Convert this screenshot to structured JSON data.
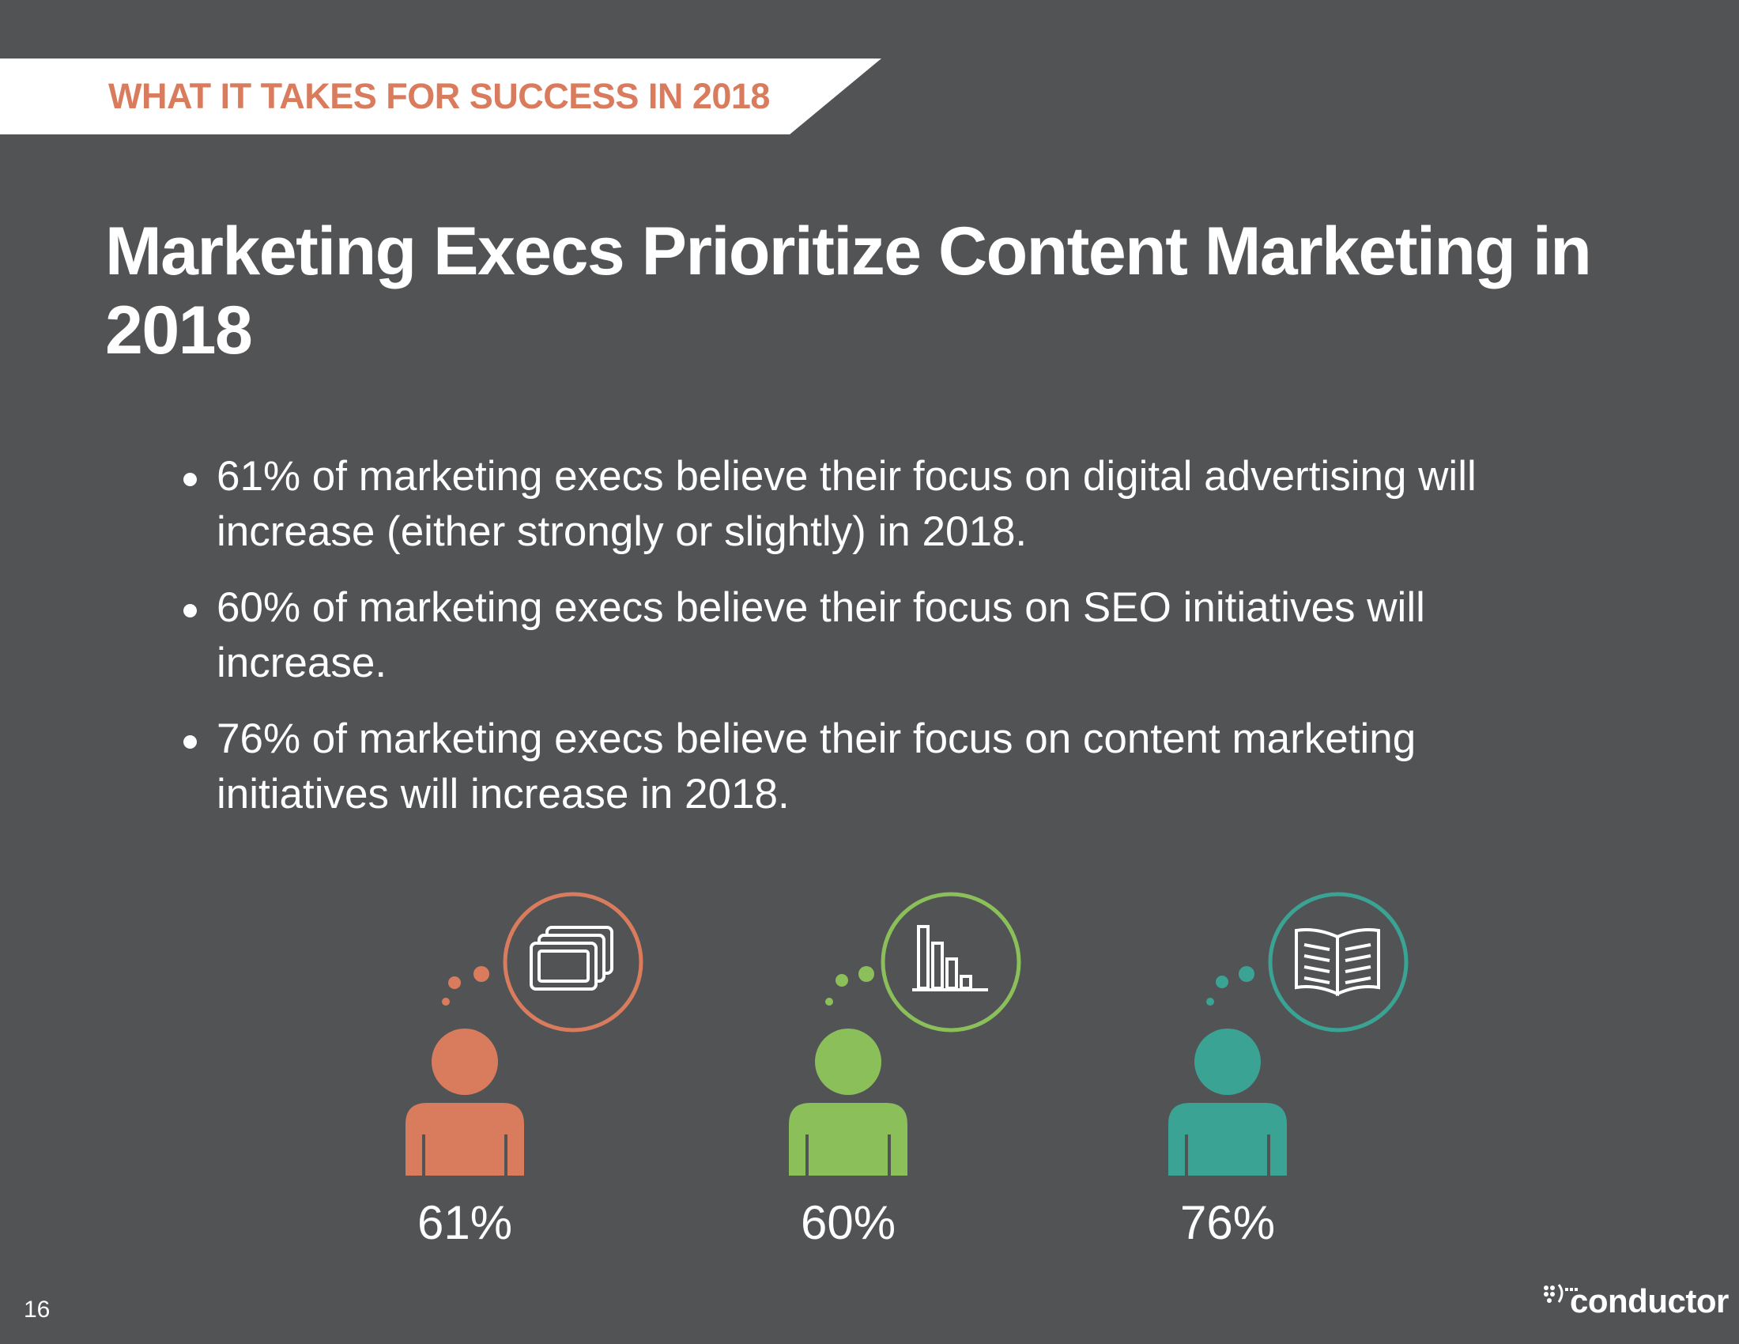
{
  "section_label": "WHAT IT TAKES FOR SUCCESS IN 2018",
  "title": "Marketing Execs Prioritize Content Marketing in 2018",
  "bullets": [
    "61% of marketing execs believe their focus on digital advertising will increase (either strongly or slightly) in 2018.",
    "60% of marketing execs believe their focus on SEO initiatives will increase.",
    "76% of marketing execs believe their focus on content marketing initiatives will increase in 2018."
  ],
  "stats": [
    {
      "value": "61%",
      "icon": "stacked-screens-icon",
      "color": "#d97c5e"
    },
    {
      "value": "60%",
      "icon": "bar-chart-icon",
      "color": "#8bbf5a"
    },
    {
      "value": "76%",
      "icon": "open-book-icon",
      "color": "#3aa394"
    }
  ],
  "page_number": "16",
  "logo": "conductor"
}
